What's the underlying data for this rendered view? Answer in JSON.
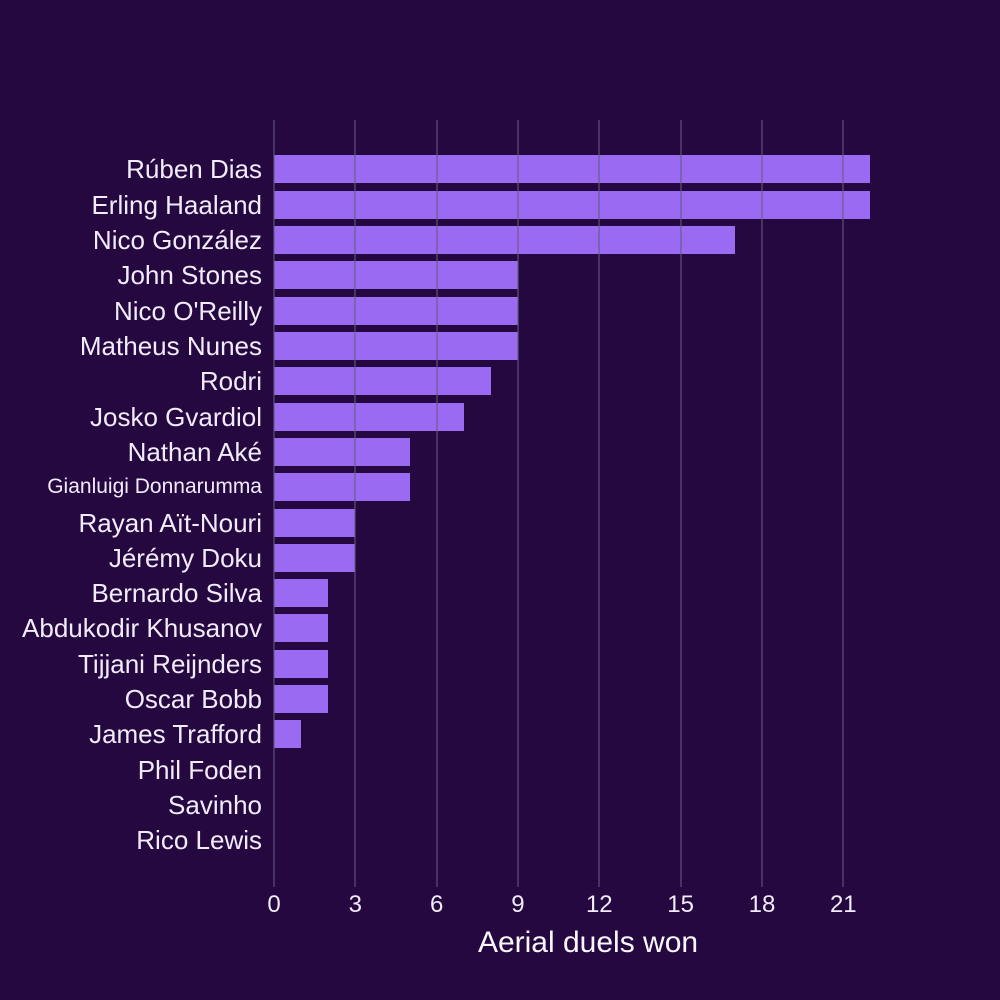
{
  "chart_data": {
    "type": "bar",
    "orientation": "horizontal",
    "title": "",
    "xlabel": "Aerial duels won",
    "ylabel": "",
    "categories": [
      "Rúben Dias",
      "Erling Haaland",
      "Nico González",
      "John Stones",
      "Nico O'Reilly",
      "Matheus Nunes",
      "Rodri",
      "Josko Gvardiol",
      "Nathan Aké",
      "Gianluigi Donnarumma",
      "Rayan Aït-Nouri",
      "Jérémy Doku",
      "Bernardo Silva",
      "Abdukodir Khusanov",
      "Tijjani Reijnders",
      "Oscar Bobb",
      "James Trafford",
      "Phil Foden",
      "Savinho",
      "Rico Lewis"
    ],
    "values": [
      22,
      22,
      17,
      9,
      9,
      9,
      8,
      7,
      5,
      5,
      3,
      3,
      2,
      2,
      2,
      2,
      1,
      0,
      0,
      0
    ],
    "xticks": [
      0,
      3,
      6,
      9,
      12,
      15,
      18,
      21
    ],
    "xlim": [
      0,
      23.1
    ],
    "grid": true,
    "legend": "none",
    "colors": {
      "background": "#250840",
      "bar": "#9b6af3",
      "gridline": "rgba(100, 90, 125, 0.55)",
      "label_text": "#f2ecfa",
      "tick_text": "#f2ecfa",
      "axis_title_text": "#fbf9ff"
    }
  }
}
